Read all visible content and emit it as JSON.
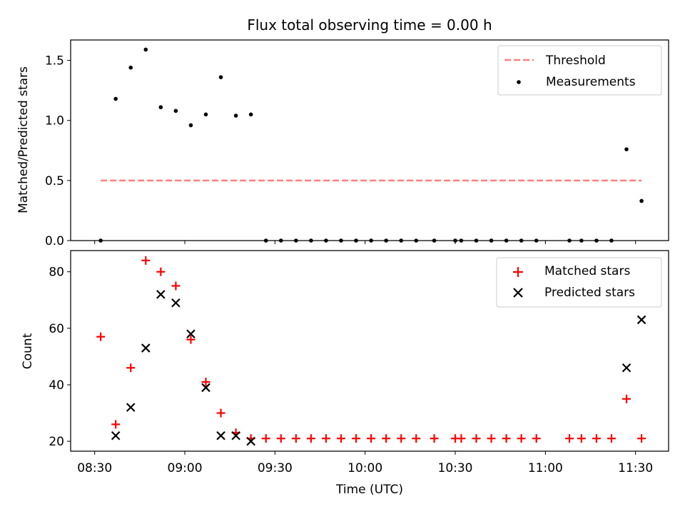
{
  "chart_data": [
    {
      "type": "scatter",
      "title": "Flux total observing time = 0.00 h",
      "xlabel": "",
      "ylabel": "Matched/Predicted stars",
      "xlim": [
        "08:22",
        "11:41"
      ],
      "ylim": [
        0,
        1.67
      ],
      "yticks": [
        0.0,
        0.5,
        1.0,
        1.5
      ],
      "ytick_labels": [
        "0.0",
        "0.5",
        "1.0",
        "1.5"
      ],
      "legend": "top-right",
      "series": [
        {
          "name": "Threshold",
          "kind": "dashed-line",
          "color": "#ff7f7f",
          "x": [
            "08:32",
            "11:32"
          ],
          "y": [
            0.5,
            0.5
          ]
        },
        {
          "name": "Measurements",
          "kind": "dot",
          "color": "#000000",
          "x": [
            "08:32",
            "08:37",
            "08:42",
            "08:47",
            "08:52",
            "08:57",
            "09:02",
            "09:07",
            "09:12",
            "09:17",
            "09:22",
            "09:27",
            "09:32",
            "09:37",
            "09:42",
            "09:47",
            "09:52",
            "09:57",
            "10:02",
            "10:07",
            "10:12",
            "10:17",
            "10:23",
            "10:30",
            "10:32",
            "10:37",
            "10:42",
            "10:47",
            "10:52",
            "10:57",
            "11:08",
            "11:12",
            "11:17",
            "11:22",
            "11:27",
            "11:32"
          ],
          "y": [
            0.0,
            1.18,
            1.44,
            1.59,
            1.11,
            1.08,
            0.96,
            1.05,
            1.36,
            1.04,
            1.05,
            0.0,
            0.0,
            0.0,
            0.0,
            0.0,
            0.0,
            0.0,
            0.0,
            0.0,
            0.0,
            0.0,
            0.0,
            0.0,
            0.0,
            0.0,
            0.0,
            0.0,
            0.0,
            0.0,
            0.0,
            0.0,
            0.0,
            0.0,
            0.76,
            0.33
          ]
        }
      ]
    },
    {
      "type": "scatter",
      "title": "",
      "xlabel": "Time (UTC)",
      "ylabel": "Count",
      "xlim": [
        "08:22",
        "11:41"
      ],
      "ylim": [
        16.5,
        87.5
      ],
      "xticks": [
        "08:30",
        "09:00",
        "09:30",
        "10:00",
        "10:30",
        "11:00",
        "11:30"
      ],
      "yticks": [
        20,
        40,
        60,
        80
      ],
      "ytick_labels": [
        "20",
        "40",
        "60",
        "80"
      ],
      "legend": "top-right",
      "series": [
        {
          "name": "Matched stars",
          "kind": "plus",
          "color": "#ff0000",
          "x": [
            "08:32",
            "08:37",
            "08:42",
            "08:47",
            "08:52",
            "08:57",
            "09:02",
            "09:07",
            "09:12",
            "09:17",
            "09:22",
            "09:27",
            "09:32",
            "09:37",
            "09:42",
            "09:47",
            "09:52",
            "09:57",
            "10:02",
            "10:07",
            "10:12",
            "10:17",
            "10:23",
            "10:30",
            "10:32",
            "10:37",
            "10:42",
            "10:47",
            "10:52",
            "10:57",
            "11:08",
            "11:12",
            "11:17",
            "11:22",
            "11:27",
            "11:32"
          ],
          "y": [
            57,
            26,
            46,
            84,
            80,
            75,
            56,
            41,
            30,
            23,
            21,
            21,
            21,
            21,
            21,
            21,
            21,
            21,
            21,
            21,
            21,
            21,
            21,
            21,
            21,
            21,
            21,
            21,
            21,
            21,
            21,
            21,
            21,
            21,
            35,
            21
          ]
        },
        {
          "name": "Predicted stars",
          "kind": "x",
          "color": "#000000",
          "x": [
            "08:37",
            "08:42",
            "08:47",
            "08:52",
            "08:57",
            "09:02",
            "09:07",
            "09:12",
            "09:17",
            "09:22",
            "11:27",
            "11:32"
          ],
          "y": [
            22,
            32,
            53,
            72,
            69,
            58,
            39,
            22,
            22,
            20,
            46,
            63
          ]
        }
      ]
    }
  ]
}
